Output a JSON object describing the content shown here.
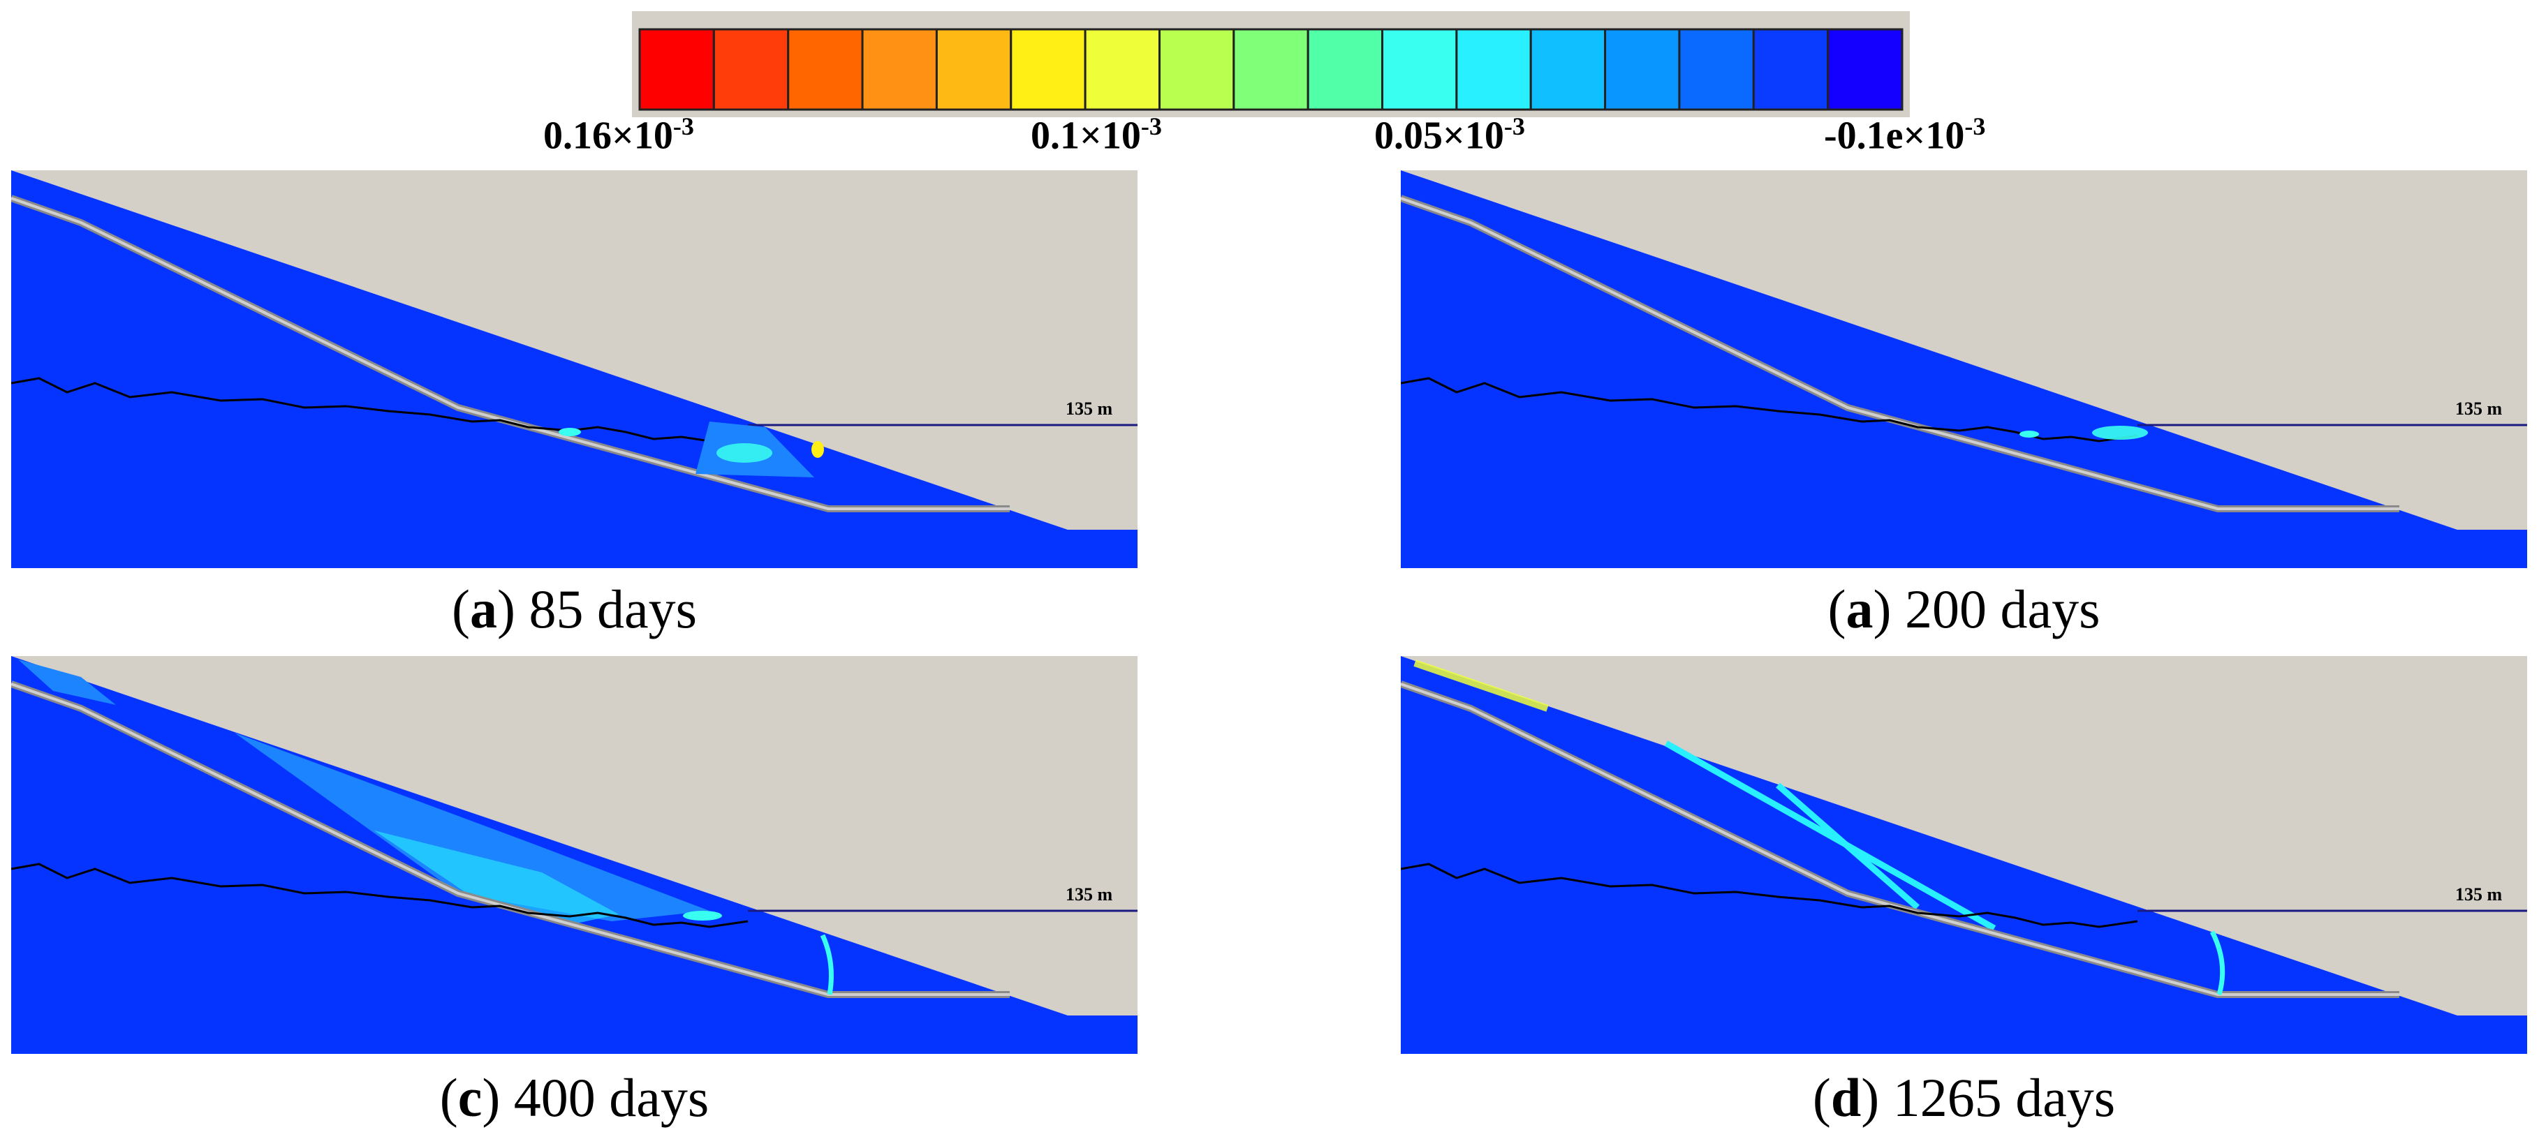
{
  "legend": {
    "colors": [
      "#ff0000",
      "#ff3d0a",
      "#ff6600",
      "#ff9214",
      "#ffb914",
      "#ffef14",
      "#eeff3a",
      "#b8ff50",
      "#80ff78",
      "#50ffa8",
      "#38fff0",
      "#28f0ff",
      "#10bfff",
      "#0a96ff",
      "#0a6aff",
      "#0a3cff",
      "#1400ff"
    ],
    "labels": [
      "0.16×10",
      "0.1×10",
      "0.05×10",
      "-0.1e×10"
    ],
    "exponent": "-3"
  },
  "colors": {
    "background": "#d4d0c8",
    "slope_fill": "#0533ff",
    "band": "#1c84ff",
    "water_line": "#1a1a80"
  },
  "water_level_label": "135 m",
  "panels": [
    {
      "letter": "a",
      "caption": "85 days"
    },
    {
      "letter": "a",
      "caption": "200 days"
    },
    {
      "letter": "c",
      "caption": "400 days"
    },
    {
      "letter": "d",
      "caption": "1265 days"
    }
  ]
}
